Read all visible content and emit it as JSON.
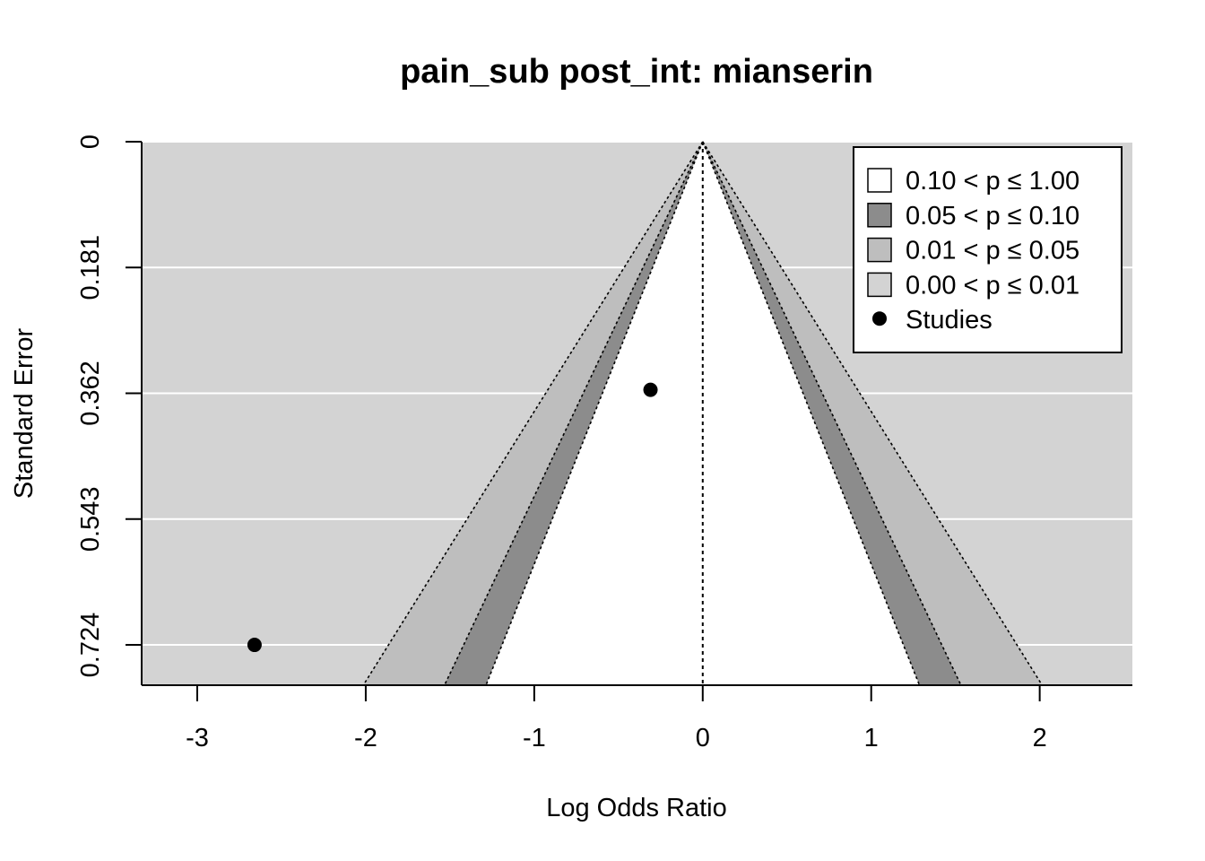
{
  "chart_data": {
    "type": "scatter",
    "subtype": "contour-enhanced funnel plot",
    "title": "pain_sub post_int: mianserin",
    "xlabel": "Log Odds Ratio",
    "ylabel": "Standard Error",
    "xlim": [
      -3.33,
      2.55
    ],
    "ylim": [
      0.782,
      0
    ],
    "y_reversed": true,
    "x_ticks": [
      -3,
      -2,
      -1,
      0,
      1,
      2
    ],
    "x_tick_labels": [
      "-3",
      "-2",
      "-1",
      "0",
      "1",
      "2"
    ],
    "y_ticks": [
      0,
      0.181,
      0.362,
      0.543,
      0.724
    ],
    "y_tick_labels": [
      "0",
      "0.181",
      "0.362",
      "0.543",
      "0.724"
    ],
    "reference_line_x": 0,
    "background_color": "#d3d3d3",
    "gridlines": "horizontal, white",
    "contours": [
      {
        "label": "0.10 < p ≤ 1.00",
        "z": 1.645,
        "color": "#ffffff"
      },
      {
        "label": "0.05 < p ≤ 0.10",
        "z": 1.96,
        "color": "#8c8c8c"
      },
      {
        "label": "0.01 < p ≤ 0.05",
        "z": 2.576,
        "color": "#bebebe"
      },
      {
        "label": "0.00 < p ≤ 0.01",
        "z": null,
        "color": "#d3d3d3"
      }
    ],
    "series": [
      {
        "name": "Studies",
        "x": [
          -0.31,
          -2.66
        ],
        "y": [
          0.357,
          0.724
        ]
      }
    ],
    "legend_position": "top-right"
  }
}
